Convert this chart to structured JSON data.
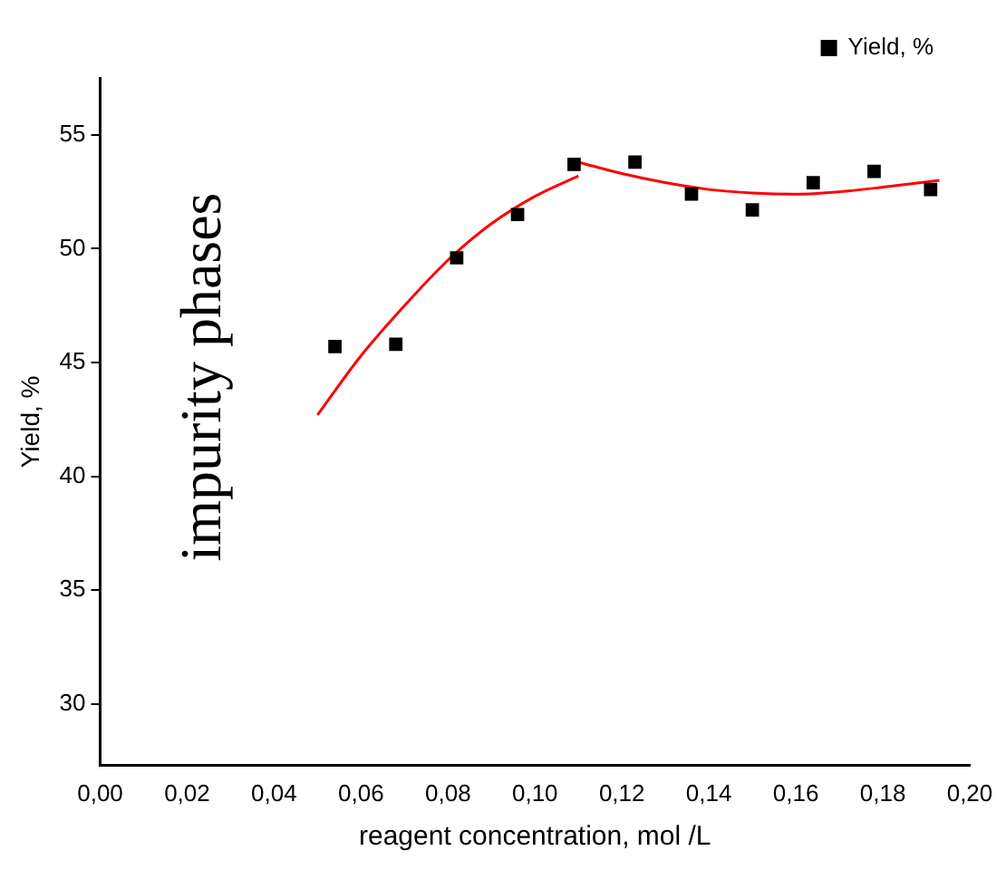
{
  "chart_data": {
    "type": "scatter",
    "xlabel": "reagent concentration, mol /L",
    "ylabel": "Yield, %",
    "annotations": [
      "impurity phases"
    ],
    "series": [
      {
        "name": "Yield, %",
        "type": "scatter",
        "color": "#000000",
        "marker": "square",
        "x": [
          0.054,
          0.068,
          0.082,
          0.096,
          0.109,
          0.123,
          0.136,
          0.15,
          0.164,
          0.178,
          0.191
        ],
        "values": [
          45.7,
          45.8,
          49.6,
          51.5,
          53.7,
          53.8,
          52.4,
          51.7,
          52.9,
          53.4,
          52.6
        ]
      },
      {
        "type": "line",
        "color": "#ff0000",
        "marker": "none",
        "x": [
          0.05,
          0.06,
          0.07,
          0.08,
          0.09,
          0.1,
          0.11
        ],
        "values": [
          42.7,
          45.3,
          47.5,
          49.5,
          51.1,
          52.3,
          53.2
        ]
      },
      {
        "type": "line",
        "color": "#ff0000",
        "marker": "none",
        "x": [
          0.11,
          0.12,
          0.13,
          0.14,
          0.15,
          0.16,
          0.17,
          0.18,
          0.193
        ],
        "values": [
          53.8,
          53.3,
          52.9,
          52.6,
          52.45,
          52.4,
          52.5,
          52.7,
          53.0
        ]
      }
    ],
    "xlim": [
      0,
      0.2
    ],
    "xticks": [
      {
        "value": 0,
        "label": "0,00"
      },
      {
        "value": 0.02,
        "label": "0,02"
      },
      {
        "value": 0.04,
        "label": "0,04"
      },
      {
        "value": 0.06,
        "label": "0,06"
      },
      {
        "value": 0.08,
        "label": "0,08"
      },
      {
        "value": 0.1,
        "label": "0,10"
      },
      {
        "value": 0.12,
        "label": "0,12"
      },
      {
        "value": 0.14,
        "label": "0,14"
      },
      {
        "value": 0.16,
        "label": "0,16"
      },
      {
        "value": 0.18,
        "label": "0,18"
      },
      {
        "value": 0.2,
        "label": "0,20"
      }
    ],
    "ylim": [
      27.3,
      57.5
    ],
    "yticks": [
      30,
      35,
      40,
      45,
      50,
      55
    ],
    "grid": false,
    "legend": "top right"
  }
}
